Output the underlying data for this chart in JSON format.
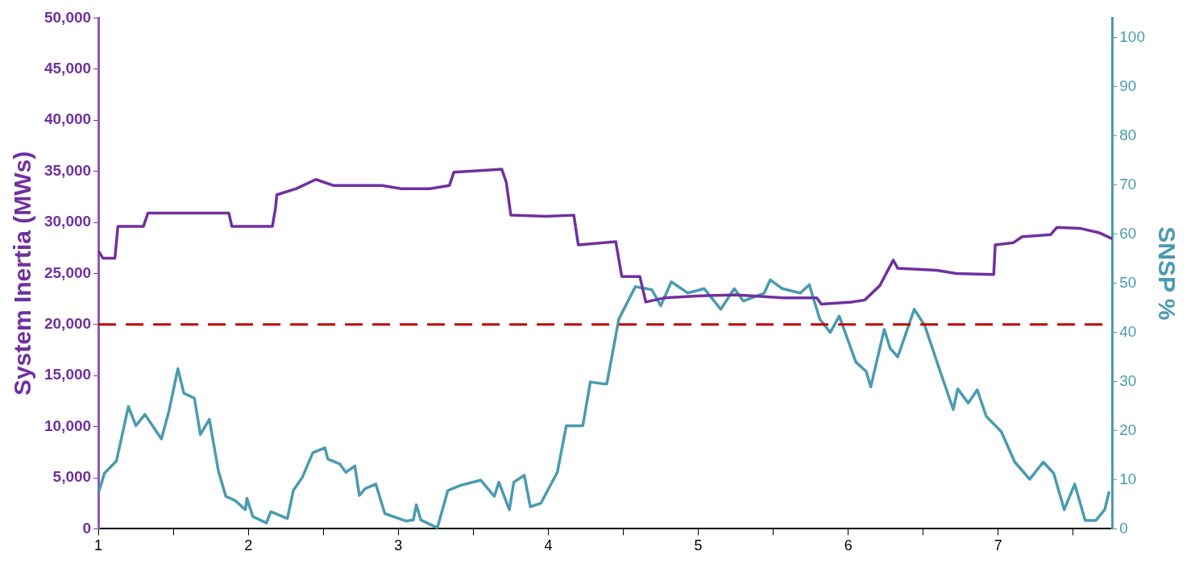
{
  "chart_data": {
    "type": "line",
    "ylabel": "System Inertia (MWs)",
    "y2label": "SNSP %",
    "xlim": [
      1,
      7.76
    ],
    "xticks": [
      1,
      {
        "value": 1.5,
        "label": null
      },
      2,
      {
        "value": 2.5,
        "label": null
      },
      3,
      {
        "value": 3.5,
        "label": null
      },
      4,
      {
        "value": 4.5,
        "label": null
      },
      5,
      {
        "value": 5.5,
        "label": null
      },
      6,
      {
        "value": 6.5,
        "label": null
      },
      7,
      {
        "value": 7.5,
        "label": null
      }
    ],
    "ylim": [
      0,
      50000
    ],
    "yticks": [
      {
        "value": 0,
        "label": "0"
      },
      {
        "value": 5000,
        "label": "5,000"
      },
      {
        "value": 10000,
        "label": "10,000"
      },
      {
        "value": 15000,
        "label": "15,000"
      },
      {
        "value": 20000,
        "label": "20,000"
      },
      {
        "value": 25000,
        "label": "25,000"
      },
      {
        "value": 30000,
        "label": "30,000"
      },
      {
        "value": 35000,
        "label": "35,000"
      },
      {
        "value": 40000,
        "label": "40,000"
      },
      {
        "value": 45000,
        "label": "45,000"
      },
      {
        "value": 50000,
        "label": "50,000"
      }
    ],
    "y2lim": [
      0,
      104
    ],
    "y2ticks": [
      0,
      10,
      20,
      30,
      40,
      50,
      60,
      70,
      80,
      90,
      100
    ],
    "grid": false,
    "legend": false,
    "marker": "none",
    "line_style": "solid",
    "series": [
      {
        "color": "#7030a0",
        "x": [
          1.0,
          1.03,
          1.11,
          1.13,
          1.3,
          1.33,
          1.87,
          1.89,
          2.16,
          2.18,
          2.19,
          2.32,
          2.45,
          2.57,
          2.89,
          3.02,
          3.21,
          3.34,
          3.37,
          3.59,
          3.69,
          3.72,
          3.75,
          3.98,
          4.17,
          4.2,
          4.45,
          4.49,
          4.61,
          4.65,
          4.77,
          5.01,
          5.25,
          5.57,
          5.79,
          5.82,
          6.02,
          6.11,
          6.21,
          6.3,
          6.33,
          6.59,
          6.72,
          6.97,
          6.98,
          7.1,
          7.16,
          7.35,
          7.39,
          7.55,
          7.67,
          7.76
        ],
        "values": [
          27200,
          26500,
          26500,
          29600,
          29600,
          30900,
          30900,
          29600,
          29600,
          31300,
          32700,
          33300,
          34200,
          33600,
          33600,
          33300,
          33300,
          33600,
          34900,
          35100,
          35200,
          33900,
          30700,
          30600,
          30700,
          27800,
          28100,
          24700,
          24700,
          22200,
          22600,
          22800,
          22900,
          22600,
          22600,
          22000,
          22200,
          22400,
          23800,
          26300,
          25500,
          25300,
          25000,
          24900,
          27800,
          28000,
          28600,
          28800,
          29500,
          29400,
          29000,
          28400
        ]
      },
      {
        "color": "#4a9bb0",
        "axis": "y2",
        "x": [
          1.0,
          1.04,
          1.12,
          1.2,
          1.25,
          1.31,
          1.42,
          1.47,
          1.53,
          1.57,
          1.64,
          1.68,
          1.74,
          1.8,
          1.85,
          1.91,
          1.98,
          1.99,
          2.03,
          2.12,
          2.15,
          2.26,
          2.3,
          2.36,
          2.43,
          2.51,
          2.53,
          2.61,
          2.65,
          2.71,
          2.74,
          2.78,
          2.85,
          2.91,
          3.05,
          3.1,
          3.12,
          3.15,
          3.26,
          3.33,
          3.42,
          3.55,
          3.64,
          3.67,
          3.74,
          3.77,
          3.84,
          3.88,
          3.95,
          4.06,
          4.12,
          4.23,
          4.28,
          4.37,
          4.39,
          4.47,
          4.58,
          4.69,
          4.75,
          4.82,
          4.93,
          5.04,
          5.15,
          5.24,
          5.3,
          5.44,
          5.48,
          5.56,
          5.68,
          5.74,
          5.81,
          5.88,
          5.94,
          6.05,
          6.12,
          6.15,
          6.24,
          6.28,
          6.33,
          6.44,
          6.51,
          6.6,
          6.7,
          6.73,
          6.8,
          6.86,
          6.92,
          7.02,
          7.11,
          7.21,
          7.3,
          7.37,
          7.44,
          7.51,
          7.58,
          7.65,
          7.71,
          7.74
        ],
        "values": [
          7.2,
          11.3,
          13.8,
          24.9,
          21,
          23.3,
          18.3,
          23.9,
          32.6,
          27.6,
          26.6,
          19.2,
          22.3,
          11.8,
          6.6,
          5.8,
          3.9,
          6.2,
          2.5,
          1.2,
          3.5,
          2.1,
          7.8,
          10.5,
          15.5,
          16.5,
          14.2,
          13.2,
          11.5,
          12.8,
          6.8,
          8.2,
          9.1,
          3.1,
          1.6,
          1.8,
          4.9,
          1.8,
          0.2,
          7.8,
          8.9,
          9.9,
          6.6,
          9.5,
          3.9,
          9.5,
          10.9,
          4.5,
          5.2,
          11.5,
          21,
          21,
          29.9,
          29.5,
          29.5,
          42.7,
          49.3,
          48.7,
          45.4,
          50.3,
          48,
          48.9,
          44.7,
          48.9,
          46.4,
          48,
          50.7,
          48.9,
          48,
          49.7,
          42.7,
          40,
          43.3,
          34,
          32,
          28.9,
          40.6,
          36.7,
          35,
          44.7,
          41.4,
          33.2,
          24.3,
          28.5,
          25.6,
          28.3,
          22.9,
          19.8,
          13.6,
          10.1,
          13.6,
          11.3,
          3.9,
          9.1,
          1.7,
          1.7,
          3.9,
          7.6
        ]
      }
    ],
    "ref_lines": [
      {
        "axis": "y",
        "value": 20000,
        "color": "#c00000",
        "line_style": "dashed"
      }
    ]
  }
}
